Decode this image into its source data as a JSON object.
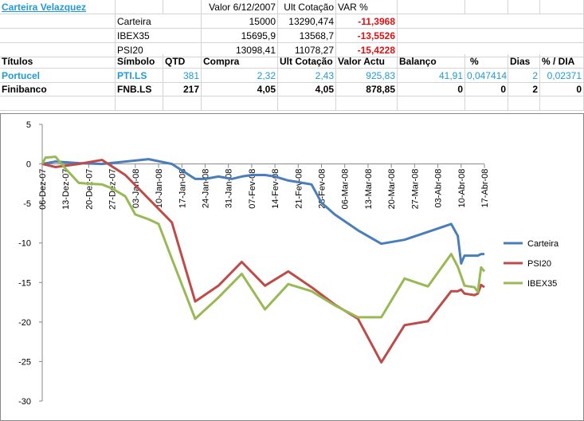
{
  "sheet": {
    "title": "Carteira Velazquez",
    "summary_header": [
      "Valor 6/12/2007",
      "Ult Cotação",
      "VAR %"
    ],
    "summary_rows": [
      {
        "name": "Carteira",
        "valor": "15000",
        "ult": "13290,474",
        "var": "-11,3968"
      },
      {
        "name": "IBEX35",
        "valor": "15695,9",
        "ult": "13568,7",
        "var": "-13,5526"
      },
      {
        "name": "PSI20",
        "valor": "13098,41",
        "ult": "11078,27",
        "var": "-15,4228"
      }
    ],
    "table_header": [
      "Títulos",
      "Símbolo",
      "QTD",
      "Compra",
      "Ult Cotação",
      "Valor Actu",
      "Balanço",
      "%",
      "Dias",
      "% / DIA"
    ],
    "table_rows": [
      {
        "titulo": "Portucel",
        "simbolo": "PTI.LS",
        "qtd": "381",
        "compra": "2,32",
        "ult": "2,43",
        "valor": "925,83",
        "balanco": "41,91",
        "pct": "0,047414",
        "dias": "2",
        "pctdia": "0,02371"
      },
      {
        "titulo": "Finibanco",
        "simbolo": "FNB.LS",
        "qtd": "217",
        "compra": "4,05",
        "ult": "4,05",
        "valor": "878,85",
        "balanco": "0",
        "pct": "0",
        "dias": "2",
        "pctdia": "0"
      }
    ]
  },
  "chart_data": {
    "type": "line",
    "ylim": [
      -30,
      5
    ],
    "yticks": [
      5,
      0,
      -5,
      -10,
      -15,
      -20,
      -25,
      -30
    ],
    "x_start": "2007-12-06",
    "x_end": "2008-04-17",
    "xtick_labels": [
      "06-Dez-07",
      "13-Dez-07",
      "20-Dez-07",
      "27-Dez-07",
      "03-Jan-08",
      "10-Jan-08",
      "17-Jan-08",
      "24-Jan-08",
      "31-Jan-08",
      "07-Fev-08",
      "14-Fev-08",
      "21-Fev-08",
      "28-Fev-08",
      "06-Mar-08",
      "13-Mar-08",
      "20-Mar-08",
      "27-Mar-08",
      "03-Abr-08",
      "10-Abr-08",
      "17-Abr-08"
    ],
    "series": [
      {
        "name": "Carteira",
        "color": "#4a7ebb",
        "points": [
          [
            "2007-12-06",
            0
          ],
          [
            "2007-12-10",
            0.3
          ],
          [
            "2007-12-17",
            0.1
          ],
          [
            "2007-12-24",
            0
          ],
          [
            "2007-12-31",
            0.3
          ],
          [
            "2008-01-07",
            0.6
          ],
          [
            "2008-01-14",
            0
          ],
          [
            "2008-01-21",
            -1.9
          ],
          [
            "2008-01-24",
            -1.9
          ],
          [
            "2008-01-28",
            -1.6
          ],
          [
            "2008-02-01",
            -1.9
          ],
          [
            "2008-02-04",
            -1.6
          ],
          [
            "2008-02-07",
            -1.4
          ],
          [
            "2008-02-11",
            -1.4
          ],
          [
            "2008-02-14",
            -1.6
          ],
          [
            "2008-02-18",
            -2.1
          ],
          [
            "2008-02-21",
            -2.3
          ],
          [
            "2008-02-25",
            -2.6
          ],
          [
            "2008-02-28",
            -4.9
          ],
          [
            "2008-03-03",
            -6.4
          ],
          [
            "2008-03-10",
            -8.4
          ],
          [
            "2008-03-17",
            -10.1
          ],
          [
            "2008-03-24",
            -9.6
          ],
          [
            "2008-03-31",
            -8.6
          ],
          [
            "2008-04-07",
            -7.6
          ],
          [
            "2008-04-09",
            -9.1
          ],
          [
            "2008-04-10",
            -12.6
          ],
          [
            "2008-04-11",
            -11.6
          ],
          [
            "2008-04-15",
            -11.6
          ],
          [
            "2008-04-16",
            -11.4
          ],
          [
            "2008-04-17",
            -11.4
          ]
        ]
      },
      {
        "name": "PSI20",
        "color": "#be4b48",
        "points": [
          [
            "2007-12-06",
            0
          ],
          [
            "2007-12-10",
            -0.4
          ],
          [
            "2007-12-17",
            0
          ],
          [
            "2007-12-24",
            0.5
          ],
          [
            "2007-12-31",
            -1.4
          ],
          [
            "2008-01-07",
            -4.4
          ],
          [
            "2008-01-14",
            -7.4
          ],
          [
            "2008-01-21",
            -17.4
          ],
          [
            "2008-01-28",
            -15.4
          ],
          [
            "2008-02-04",
            -12.4
          ],
          [
            "2008-02-11",
            -15.4
          ],
          [
            "2008-02-18",
            -13.6
          ],
          [
            "2008-02-25",
            -15.6
          ],
          [
            "2008-03-03",
            -17.8
          ],
          [
            "2008-03-10",
            -19.6
          ],
          [
            "2008-03-17",
            -25.1
          ],
          [
            "2008-03-24",
            -20.4
          ],
          [
            "2008-03-31",
            -19.9
          ],
          [
            "2008-04-07",
            -16.1
          ],
          [
            "2008-04-09",
            -16.1
          ],
          [
            "2008-04-10",
            -15.9
          ],
          [
            "2008-04-11",
            -16.4
          ],
          [
            "2008-04-14",
            -16.6
          ],
          [
            "2008-04-15",
            -16.4
          ],
          [
            "2008-04-16",
            -15.3
          ],
          [
            "2008-04-17",
            -15.6
          ]
        ]
      },
      {
        "name": "IBEX35",
        "color": "#98b954",
        "points": [
          [
            "2007-12-06",
            0
          ],
          [
            "2007-12-07",
            0.8
          ],
          [
            "2007-12-10",
            0.9
          ],
          [
            "2007-12-13",
            -0.6
          ],
          [
            "2007-12-17",
            -2.4
          ],
          [
            "2007-12-20",
            -2.5
          ],
          [
            "2007-12-24",
            -2.6
          ],
          [
            "2007-12-27",
            -3.1
          ],
          [
            "2007-12-31",
            -4.1
          ],
          [
            "2008-01-03",
            -6.4
          ],
          [
            "2008-01-07",
            -7.0
          ],
          [
            "2008-01-10",
            -7.6
          ],
          [
            "2008-01-14",
            -12.0
          ],
          [
            "2008-01-21",
            -19.6
          ],
          [
            "2008-01-28",
            -16.9
          ],
          [
            "2008-02-04",
            -13.9
          ],
          [
            "2008-02-11",
            -18.4
          ],
          [
            "2008-02-18",
            -15.2
          ],
          [
            "2008-02-25",
            -16.1
          ],
          [
            "2008-03-03",
            -17.9
          ],
          [
            "2008-03-10",
            -19.4
          ],
          [
            "2008-03-17",
            -19.4
          ],
          [
            "2008-03-24",
            -14.5
          ],
          [
            "2008-03-31",
            -15.5
          ],
          [
            "2008-04-07",
            -11.4
          ],
          [
            "2008-04-09",
            -13.0
          ],
          [
            "2008-04-10",
            -14.2
          ],
          [
            "2008-04-11",
            -15.4
          ],
          [
            "2008-04-14",
            -15.6
          ],
          [
            "2008-04-15",
            -16.2
          ],
          [
            "2008-04-16",
            -13.1
          ],
          [
            "2008-04-17",
            -13.6
          ]
        ]
      }
    ],
    "legend_position": "right",
    "grid": false
  }
}
